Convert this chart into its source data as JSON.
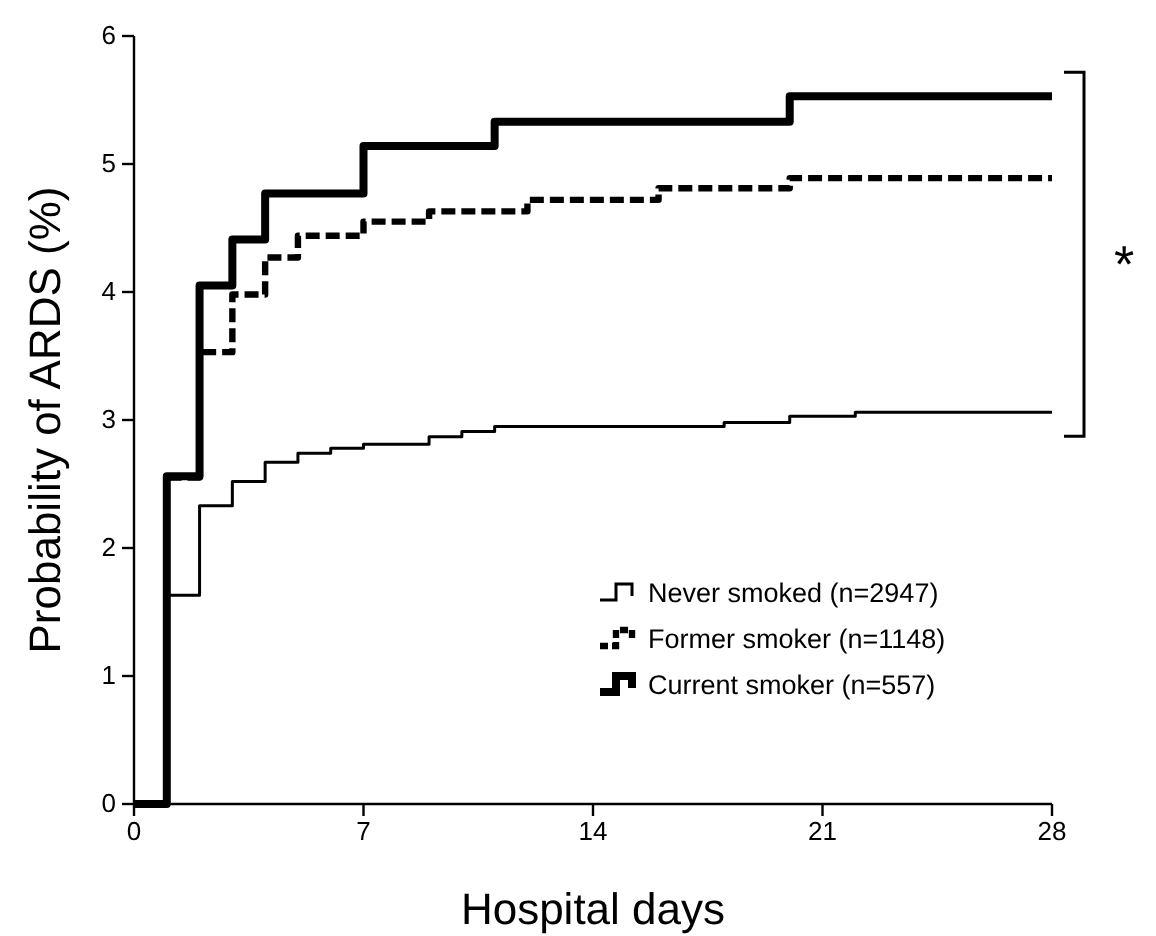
{
  "chart_data": {
    "type": "step",
    "xlabel": "Hospital days",
    "ylabel": "Probability of ARDS (%)",
    "xlim": [
      0,
      28
    ],
    "xticks": [
      0,
      7,
      14,
      21,
      28
    ],
    "ylim": [
      0,
      6
    ],
    "yticks": [
      0,
      1,
      2,
      3,
      4,
      5,
      6
    ],
    "grid": false,
    "legend": "bottom right",
    "marker": "none",
    "series": [
      {
        "name": "Never smoked (n=2947)",
        "color": "#000000",
        "line_style": "solid",
        "x": [
          0,
          1,
          2,
          3,
          4,
          5,
          6,
          7,
          9,
          10,
          11,
          18,
          20,
          22,
          28
        ],
        "values": [
          0,
          1.63,
          2.33,
          2.52,
          2.67,
          2.74,
          2.78,
          2.81,
          2.87,
          2.91,
          2.95,
          2.98,
          3.03,
          3.06,
          3.06
        ]
      },
      {
        "name": "Former smoker (n=1148)",
        "color": "#000000",
        "line_style": "dashed",
        "x": [
          0,
          1,
          2,
          3,
          4,
          5,
          7,
          9,
          12,
          16,
          20,
          28
        ],
        "values": [
          0,
          2.55,
          3.53,
          3.98,
          4.27,
          4.44,
          4.55,
          4.63,
          4.72,
          4.81,
          4.89,
          4.89
        ]
      },
      {
        "name": "Current smoker (n=557)",
        "color": "#000000",
        "line_style": "solid",
        "x": [
          0,
          1,
          2,
          3,
          4,
          7,
          11,
          20,
          28
        ],
        "values": [
          0,
          2.56,
          4.05,
          4.41,
          4.77,
          5.14,
          5.33,
          5.53,
          5.53
        ]
      }
    ],
    "annotations": [
      "*"
    ]
  }
}
